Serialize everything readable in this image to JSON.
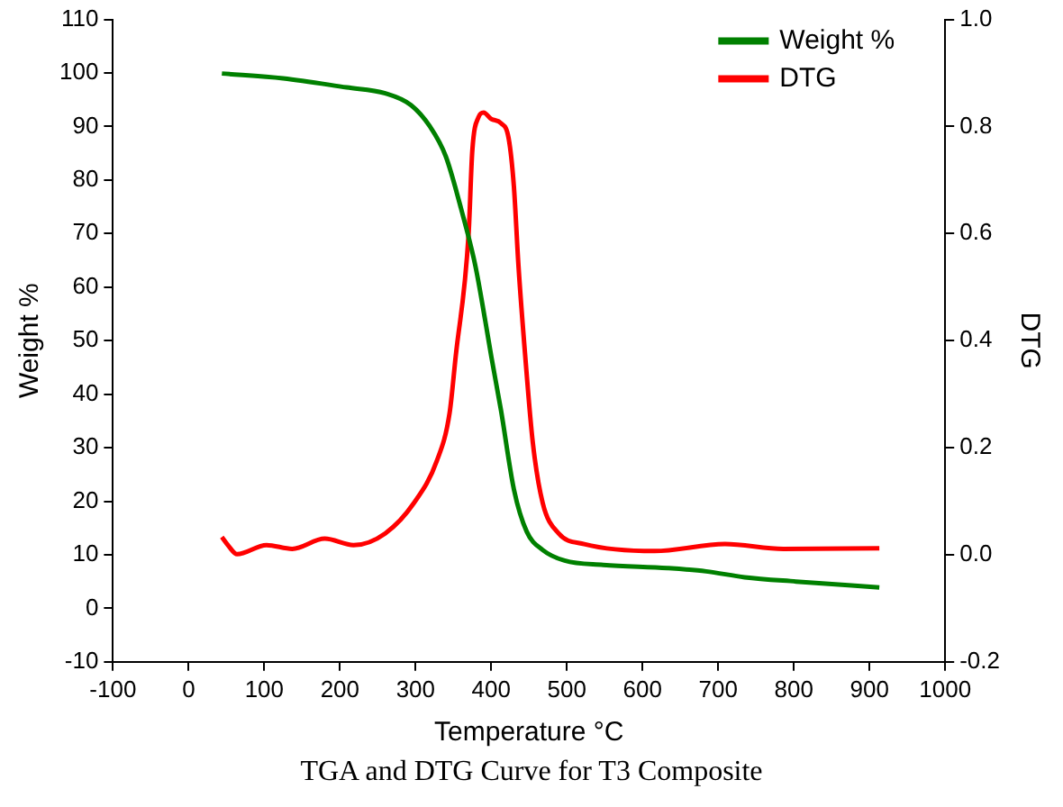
{
  "chart_data": {
    "type": "line",
    "title": "TGA and DTG Curve for T3 Composite",
    "xlabel": "Temperature °C",
    "ylabel": "Weight %",
    "y2label": "DTG",
    "xlim": [
      -100,
      1000
    ],
    "xticks": [
      -100,
      0,
      100,
      200,
      300,
      400,
      500,
      600,
      700,
      800,
      900,
      1000
    ],
    "ylim": [
      -10,
      110
    ],
    "yticks": [
      -10,
      0,
      10,
      20,
      30,
      40,
      50,
      60,
      70,
      80,
      90,
      100,
      110
    ],
    "y2lim": [
      -0.2,
      1.0
    ],
    "y2ticks": [
      {
        "value": -0.2,
        "label": "-0.2"
      },
      {
        "value": 0,
        "label": "0.0"
      },
      {
        "value": 0.2,
        "label": "0.2"
      },
      {
        "value": 0.4,
        "label": "0.4"
      },
      {
        "value": 0.6,
        "label": "0.6"
      },
      {
        "value": 0.8,
        "label": "0.8"
      },
      {
        "value": 1,
        "label": "1.0"
      }
    ],
    "grid": false,
    "legend": "top right",
    "marker": "none",
    "line_style": "solid",
    "series": [
      {
        "name": "Weight %",
        "color": "#008000",
        "x": [
          44,
          125,
          209,
          260,
          294,
          319,
          340,
          361,
          379,
          392,
          400,
          413,
          430,
          447,
          468,
          497,
          548,
          633,
          684,
          735,
          803,
          913
        ],
        "values": [
          99.9,
          99.0,
          97.3,
          96.2,
          94.0,
          90.0,
          84.4,
          74.2,
          64.0,
          53.8,
          47.1,
          36.9,
          22.2,
          14.3,
          10.9,
          8.9,
          8.1,
          7.5,
          6.9,
          5.8,
          5.0,
          3.9
        ]
      },
      {
        "name": "DTG",
        "color": "#ff0000",
        "axis": "y2",
        "x": [
          44,
          53,
          64,
          103,
          137,
          180,
          218,
          260,
          298,
          328,
          345,
          353,
          370,
          375,
          383,
          390,
          400,
          413,
          423,
          430,
          436,
          445,
          455,
          468,
          489,
          523,
          616,
          709,
          786,
          913
        ],
        "values": [
          0.033,
          0.016,
          0.001,
          0.018,
          0.011,
          0.03,
          0.018,
          0.04,
          0.097,
          0.175,
          0.265,
          0.37,
          0.597,
          0.755,
          0.817,
          0.826,
          0.814,
          0.806,
          0.778,
          0.687,
          0.54,
          0.37,
          0.209,
          0.097,
          0.04,
          0.02,
          0.007,
          0.02,
          0.011,
          0.012
        ]
      }
    ]
  }
}
